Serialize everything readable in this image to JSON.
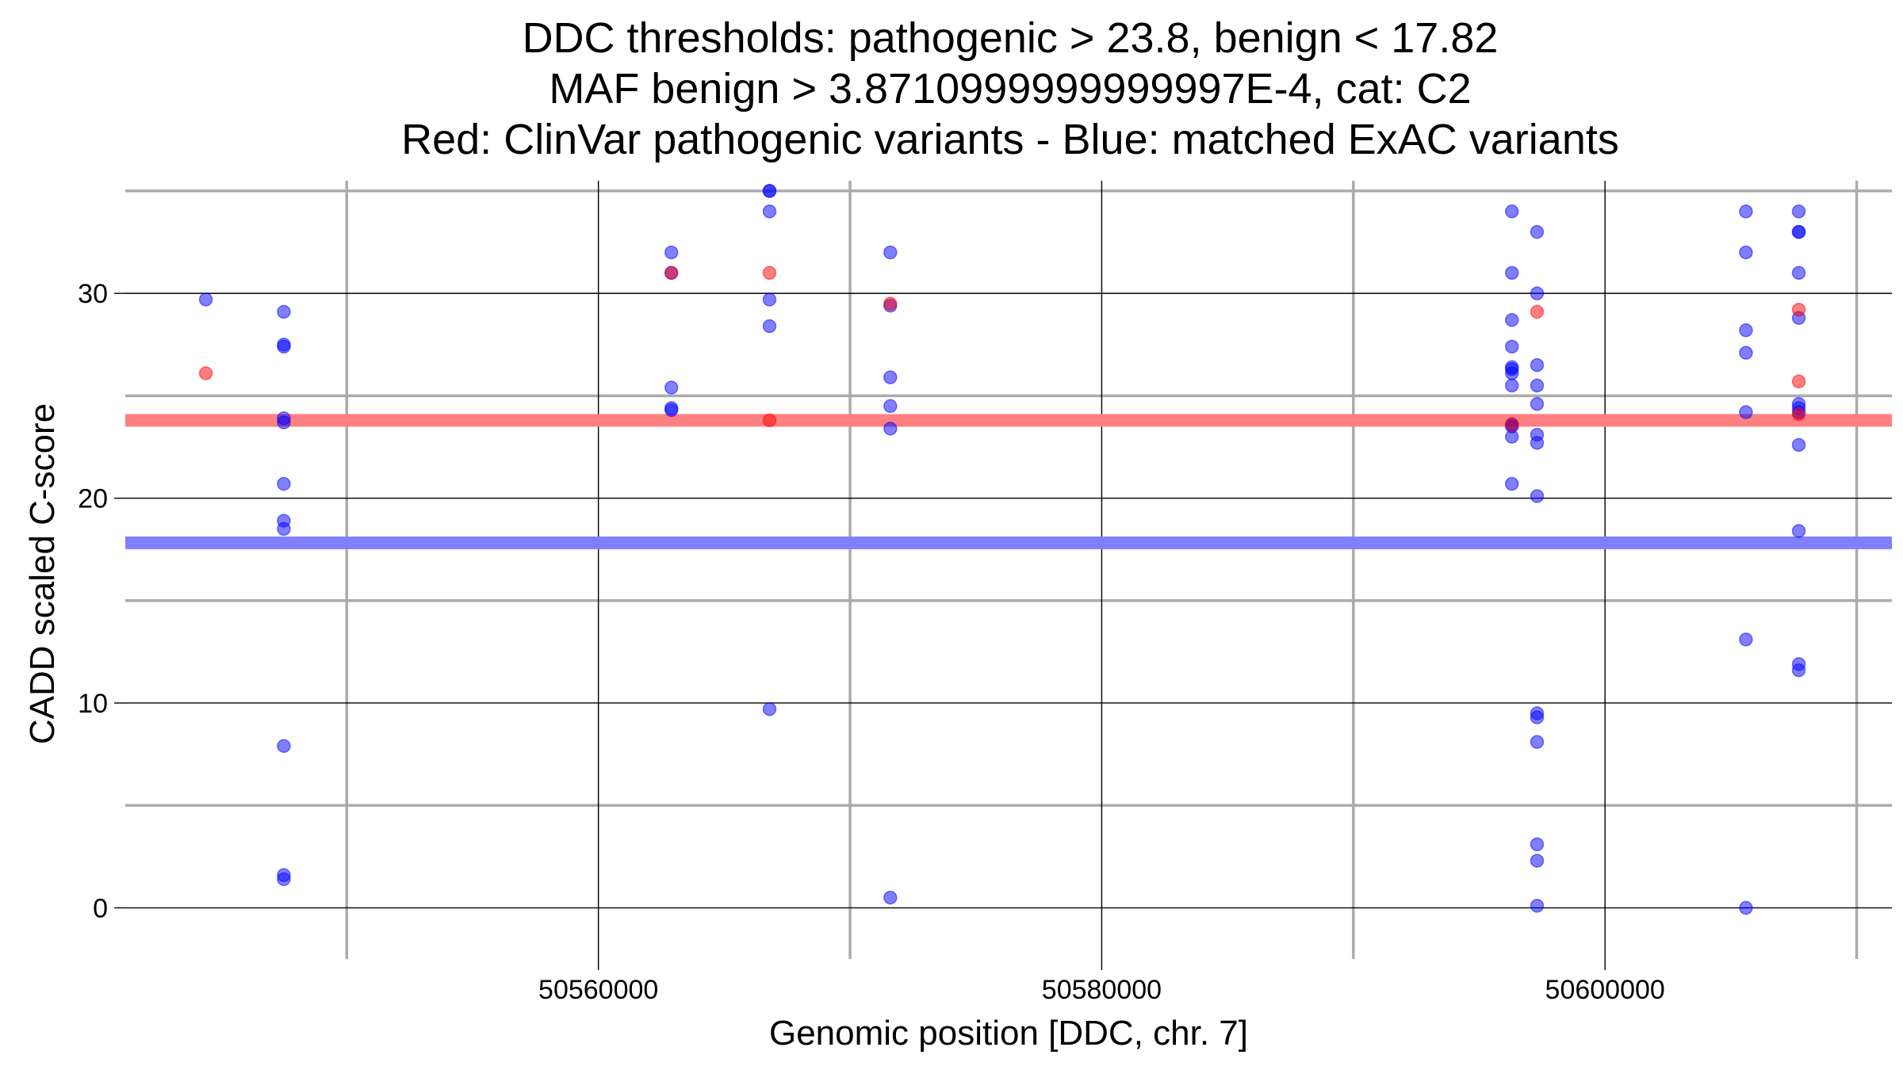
{
  "chart_data": {
    "type": "scatter",
    "title": [
      "DDC thresholds: pathogenic > 23.8, benign < 17.82",
      "MAF benign > 3.8710999999999997E-4, cat: C2",
      "Red: ClinVar pathogenic variants - Blue: matched ExAC variants"
    ],
    "xlabel": "Genomic position [DDC, chr. 7]",
    "ylabel": "CADD scaled C-score",
    "xlim": [
      50541200,
      50611400
    ],
    "ylim": [
      -2.5,
      35.5
    ],
    "x_major_ticks": [
      50560000,
      50580000,
      50600000
    ],
    "x_major_labels": [
      "50560000",
      "50580000",
      "50600000"
    ],
    "x_minor_ticks": [
      50550000,
      50570000,
      50590000,
      50610000
    ],
    "y_major_ticks": [
      0,
      10,
      20,
      30
    ],
    "y_major_labels": [
      "0",
      "10",
      "20",
      "30"
    ],
    "y_minor_ticks": [
      5,
      15,
      25,
      35
    ],
    "thresholds": [
      {
        "name": "pathogenic",
        "value": 23.8,
        "color": "#ff8080"
      },
      {
        "name": "benign",
        "value": 17.82,
        "color": "#8080ff"
      }
    ],
    "series": [
      {
        "name": "ClinVar pathogenic variants",
        "color": "#ff0000",
        "points": [
          [
            50544400,
            26.1
          ],
          [
            50562900,
            31.0
          ],
          [
            50566800,
            31.0
          ],
          [
            50566800,
            23.8
          ],
          [
            50571600,
            29.5
          ],
          [
            50596300,
            23.6
          ],
          [
            50597300,
            29.1
          ],
          [
            50607700,
            29.2
          ],
          [
            50607700,
            25.7
          ],
          [
            50607700,
            24.1
          ]
        ]
      },
      {
        "name": "matched ExAC variants",
        "color": "#0000ff",
        "points": [
          [
            50544400,
            29.7
          ],
          [
            50547500,
            29.1
          ],
          [
            50547500,
            27.5
          ],
          [
            50547500,
            27.4
          ],
          [
            50547500,
            23.9
          ],
          [
            50547500,
            23.7
          ],
          [
            50547500,
            20.7
          ],
          [
            50547500,
            18.9
          ],
          [
            50547500,
            18.5
          ],
          [
            50547500,
            7.9
          ],
          [
            50547500,
            1.6
          ],
          [
            50547500,
            1.4
          ],
          [
            50562900,
            32.0
          ],
          [
            50562900,
            31.0
          ],
          [
            50562900,
            25.4
          ],
          [
            50562900,
            24.4
          ],
          [
            50562900,
            24.3
          ],
          [
            50566800,
            35.0
          ],
          [
            50566800,
            35.0
          ],
          [
            50566800,
            34.0
          ],
          [
            50566800,
            29.7
          ],
          [
            50566800,
            28.4
          ],
          [
            50566800,
            9.7
          ],
          [
            50571600,
            32.0
          ],
          [
            50571600,
            29.4
          ],
          [
            50571600,
            25.9
          ],
          [
            50571600,
            24.5
          ],
          [
            50571600,
            23.4
          ],
          [
            50571600,
            0.5
          ],
          [
            50596300,
            34.0
          ],
          [
            50596300,
            31.0
          ],
          [
            50596300,
            28.7
          ],
          [
            50596300,
            27.4
          ],
          [
            50596300,
            26.4
          ],
          [
            50596300,
            26.3
          ],
          [
            50596300,
            26.1
          ],
          [
            50596300,
            25.5
          ],
          [
            50596300,
            23.6
          ],
          [
            50596300,
            23.5
          ],
          [
            50596300,
            23.0
          ],
          [
            50596300,
            20.7
          ],
          [
            50597300,
            33.0
          ],
          [
            50597300,
            30.0
          ],
          [
            50597300,
            26.5
          ],
          [
            50597300,
            25.5
          ],
          [
            50597300,
            24.6
          ],
          [
            50597300,
            23.1
          ],
          [
            50597300,
            22.7
          ],
          [
            50597300,
            20.1
          ],
          [
            50597300,
            9.5
          ],
          [
            50597300,
            9.3
          ],
          [
            50597300,
            8.1
          ],
          [
            50597300,
            3.1
          ],
          [
            50597300,
            2.3
          ],
          [
            50597300,
            0.1
          ],
          [
            50605600,
            34.0
          ],
          [
            50605600,
            32.0
          ],
          [
            50605600,
            28.2
          ],
          [
            50605600,
            27.1
          ],
          [
            50605600,
            24.2
          ],
          [
            50605600,
            13.1
          ],
          [
            50605600,
            0.0
          ],
          [
            50607700,
            34.0
          ],
          [
            50607700,
            33.0
          ],
          [
            50607700,
            33.0
          ],
          [
            50607700,
            31.0
          ],
          [
            50607700,
            28.8
          ],
          [
            50607700,
            24.6
          ],
          [
            50607700,
            24.4
          ],
          [
            50607700,
            24.2
          ],
          [
            50607700,
            22.6
          ],
          [
            50607700,
            18.4
          ],
          [
            50607700,
            11.9
          ],
          [
            50607700,
            11.6
          ]
        ]
      }
    ]
  }
}
